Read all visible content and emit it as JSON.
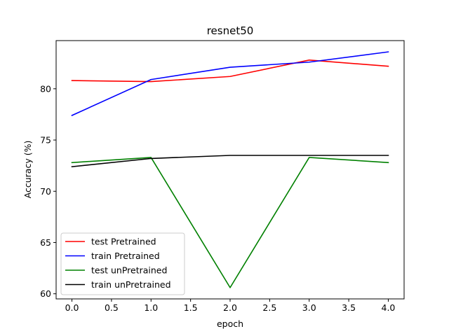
{
  "chart_data": {
    "type": "line",
    "title": "resnet50",
    "xlabel": "epoch",
    "ylabel": "Accuracy (%)",
    "x": [
      0,
      1,
      2,
      3,
      4
    ],
    "xlim": [
      -0.2,
      4.2
    ],
    "ylim": [
      59.5,
      84.7
    ],
    "xticks": [
      0.0,
      0.5,
      1.0,
      1.5,
      2.0,
      2.5,
      3.0,
      3.5,
      4.0
    ],
    "xtick_labels": [
      "0.0",
      "0.5",
      "1.0",
      "1.5",
      "2.0",
      "2.5",
      "3.0",
      "3.5",
      "4.0"
    ],
    "yticks": [
      60,
      65,
      70,
      75,
      80
    ],
    "ytick_labels": [
      "60",
      "65",
      "70",
      "75",
      "80"
    ],
    "grid": false,
    "legend_position": "lower-left",
    "series": [
      {
        "name": "test Pretrained",
        "color": "#ff0000",
        "values": [
          80.8,
          80.7,
          81.2,
          82.8,
          82.2
        ]
      },
      {
        "name": "train Pretrained",
        "color": "#0000ff",
        "values": [
          77.4,
          80.9,
          82.1,
          82.6,
          83.6
        ]
      },
      {
        "name": "test unPretrained",
        "color": "#008000",
        "values": [
          72.8,
          73.3,
          60.6,
          73.3,
          72.8
        ]
      },
      {
        "name": "train unPretrained",
        "color": "#000000",
        "values": [
          72.4,
          73.2,
          73.5,
          73.5,
          73.5
        ]
      }
    ]
  }
}
